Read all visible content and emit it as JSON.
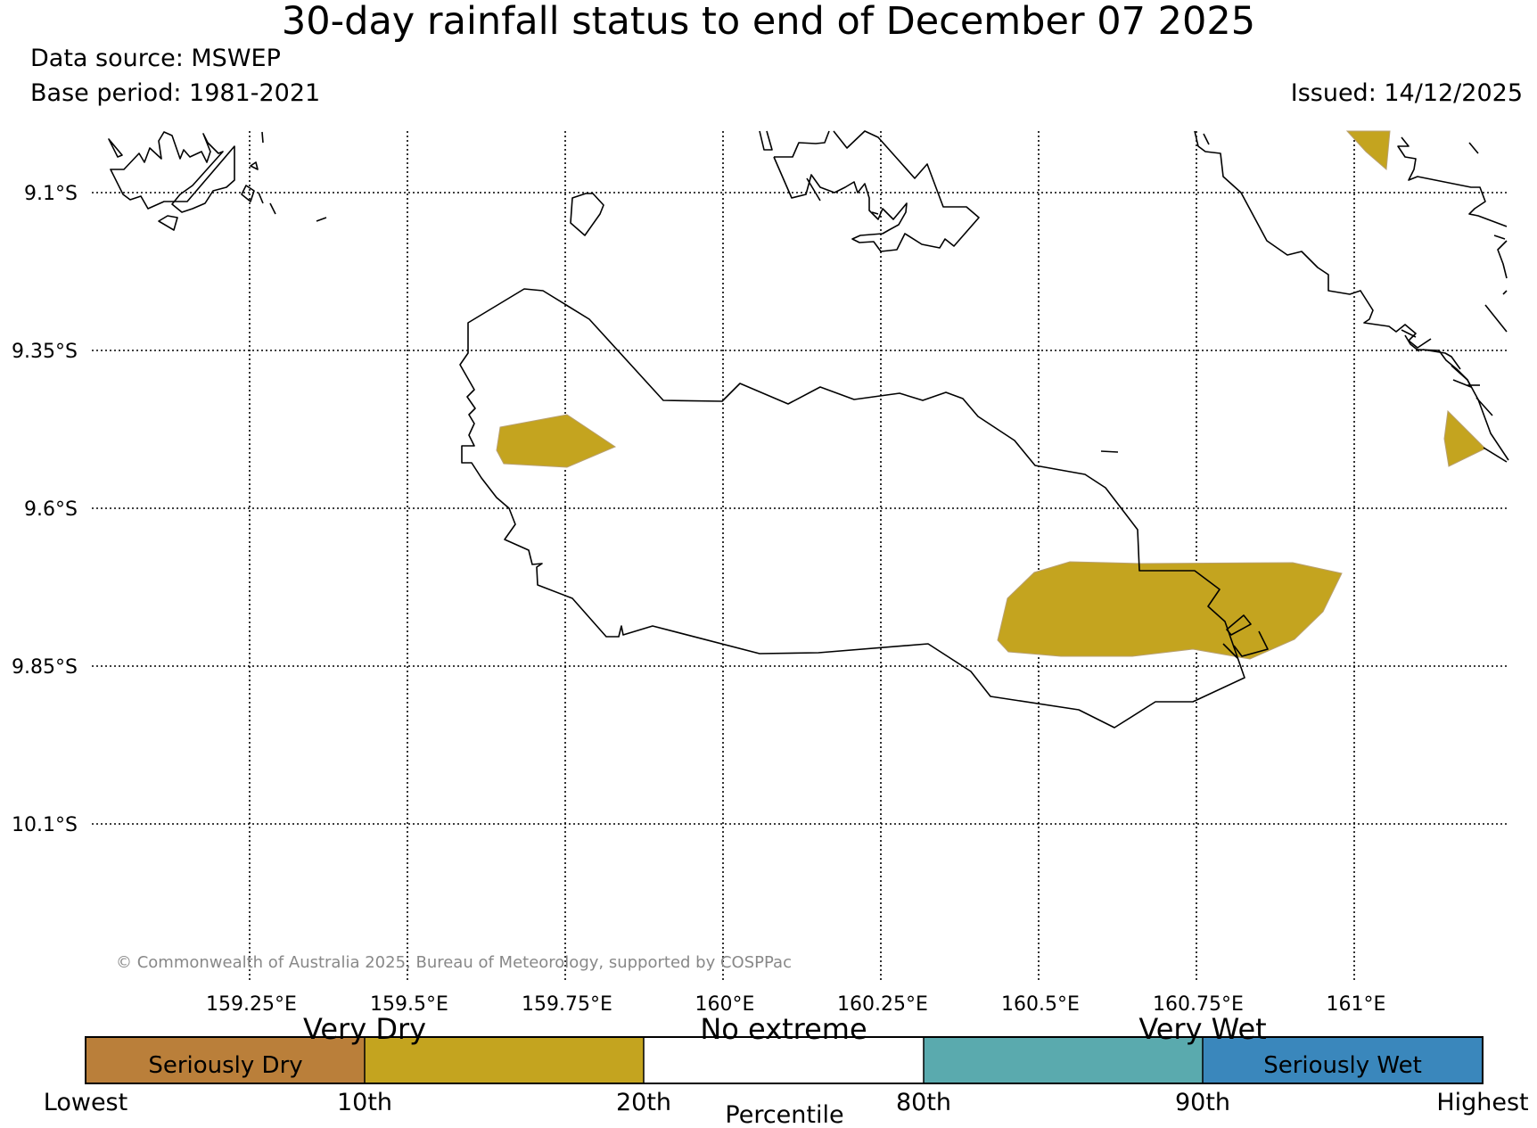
{
  "header": {
    "title": "30-day rainfall status to end of December 07 2025",
    "data_source": "Data source: MSWEP",
    "base_period": "Base period: 1981-2021",
    "issued": "Issued: 14/12/2025"
  },
  "map": {
    "lat_labels": [
      "9.1°S",
      "9.35°S",
      "9.6°S",
      "9.85°S",
      "10.1°S"
    ],
    "lon_labels": [
      "159.25°E",
      "159.5°E",
      "159.75°E",
      "160°E",
      "160.25°E",
      "160.5°E",
      "160.75°E",
      "161°E"
    ],
    "copyright": "© Commonwealth of Australia 2025, Bureau of Meteorology, supported by COSPPac",
    "grid": true,
    "colors": {
      "coast": "#000000",
      "grid": "#000000",
      "very_dry_fill": "#c4a41f"
    },
    "very_dry_areas_note": ""
  },
  "legend": {
    "categories": [
      {
        "text": "Very Dry"
      },
      {
        "text": "No extreme"
      },
      {
        "text": "Very Wet"
      }
    ],
    "segments": [
      {
        "label": "Seriously Dry",
        "color": "#ba7f3a"
      },
      {
        "label": "",
        "color": "#c4a41f"
      },
      {
        "label": "",
        "color": "#ffffff"
      },
      {
        "label": "",
        "color": "#5aaaae"
      },
      {
        "label": "Seriously Wet",
        "color": "#3a87bc"
      }
    ],
    "ticks": [
      "Lowest",
      "10th",
      "20th",
      "80th",
      "90th",
      "Highest"
    ],
    "axis_label": "Percentile"
  }
}
